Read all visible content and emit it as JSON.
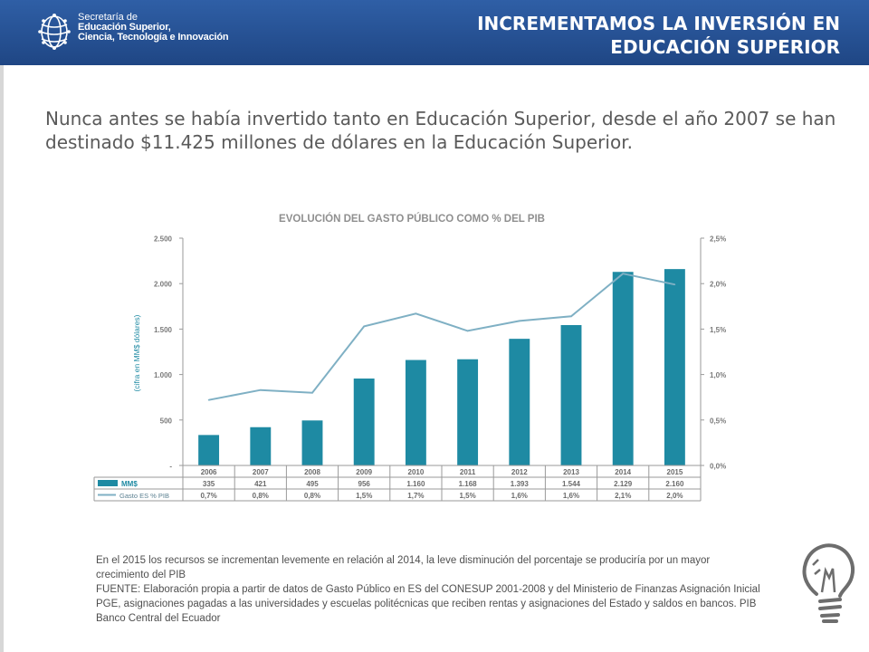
{
  "header": {
    "org_line1": "Secretaría de",
    "org_line2": "Educación Superior,",
    "org_line3": "Ciencia, Tecnología e Innovación",
    "title_line1": "INCREMENTAMOS LA INVERSIÓN EN",
    "title_line2": "EDUCACIÓN SUPERIOR"
  },
  "lead": {
    "line1": "Nunca antes se había invertido tanto en Educación Superior, desde el año 2007 se han",
    "line2": "destinado $11.425 millones de dólares en la Educación Superior."
  },
  "chart_data": {
    "type": "bar",
    "title": "EVOLUCIÓN DEL GASTO PÚBLICO COMO % DEL PIB",
    "ylabel": "(cifra en MM$ dólares)",
    "categories": [
      "2006",
      "2007",
      "2008",
      "2009",
      "2010",
      "2011",
      "2012",
      "2013",
      "2014",
      "2015"
    ],
    "ylim": [
      0,
      2500
    ],
    "y_ticks": [
      "2.500",
      "2.000",
      "1.500",
      "1.000",
      "500",
      "-"
    ],
    "y2lim": [
      0,
      2.5
    ],
    "y2_ticks": [
      "2,5%",
      "2,0%",
      "1,5%",
      "1,0%",
      "0,5%",
      "0,0%"
    ],
    "series": [
      {
        "name": "MM$",
        "type": "bar",
        "color": "#1e8aa3",
        "values": [
          335,
          421,
          495,
          956,
          1160,
          1168,
          1393,
          1544,
          2129,
          2160
        ],
        "labels": [
          "335",
          "421",
          "495",
          "956",
          "1.160",
          "1.168",
          "1.393",
          "1.544",
          "2.129",
          "2.160"
        ]
      },
      {
        "name": "Gasto ES % PIB",
        "type": "line",
        "color": "#7fb0c4",
        "axis": "secondary",
        "values": [
          0.72,
          0.83,
          0.8,
          1.53,
          1.67,
          1.48,
          1.59,
          1.64,
          2.11,
          1.99
        ],
        "labels": [
          "0,7%",
          "0,8%",
          "0,8%",
          "1,5%",
          "1,7%",
          "1,5%",
          "1,6%",
          "1,6%",
          "2,1%",
          "2,0%"
        ]
      }
    ]
  },
  "footnote": {
    "line1": "En el 2015 los recursos se incrementan levemente en relación al 2014, la  leve disminución del porcentaje se produciría por un mayor",
    "line2": "crecimiento del PIB",
    "line3": "FUENTE: Elaboración propia a partir de datos de Gasto Público en ES del CONESUP 2001-2008 y del Ministerio de Finanzas Asignación Inicial",
    "line4": "PGE, asignaciones pagadas a las universidades y escuelas politécnicas que reciben rentas y asignaciones del Estado y saldos en bancos. PIB",
    "line5": "Banco Central del Ecuador"
  },
  "colors": {
    "header": "#2a569a",
    "bar": "#1e8aa3",
    "line": "#7fb0c4",
    "text": "#5a5a5a"
  },
  "icons": {
    "logo": "globe-logo-icon",
    "decoration": "lightbulb-icon"
  }
}
